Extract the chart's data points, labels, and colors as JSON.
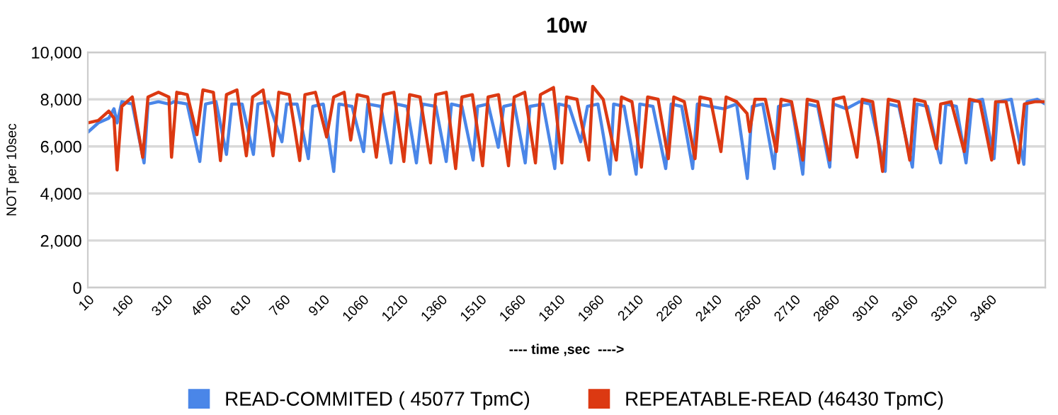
{
  "chart_data": {
    "type": "line",
    "title": "10w",
    "xlabel": "---- time ,sec  ---->",
    "ylabel": "NOT per 10sec",
    "xlim": [
      10,
      3670
    ],
    "xticks": [
      10,
      160,
      310,
      460,
      610,
      760,
      910,
      1060,
      1210,
      1360,
      1510,
      1660,
      1810,
      1960,
      2110,
      2260,
      2410,
      2560,
      2710,
      2860,
      3010,
      3160,
      3310,
      3460
    ],
    "ylim": [
      0,
      10000
    ],
    "yticks": [
      {
        "value": 0,
        "label": "0"
      },
      {
        "value": 2000,
        "label": "2,000"
      },
      {
        "value": 4000,
        "label": "4,000"
      },
      {
        "value": 6000,
        "label": "6,000"
      },
      {
        "value": 8000,
        "label": "8,000"
      },
      {
        "value": 10000,
        "label": "10,000"
      }
    ],
    "grid": "y",
    "legend": "bottom",
    "marker": "none",
    "line_style": "solid",
    "series": [
      {
        "name": "READ-COMMITED ( 45077 TpmC)",
        "color": "#4a86e8",
        "x": [
          10,
          50,
          90,
          110,
          122,
          140,
          180,
          225,
          240,
          280,
          320,
          340,
          390,
          438,
          460,
          500,
          540,
          560,
          600,
          643,
          660,
          700,
          752,
          770,
          810,
          853,
          870,
          910,
          950,
          970,
          1020,
          1064,
          1080,
          1130,
          1169,
          1190,
          1230,
          1266,
          1290,
          1340,
          1380,
          1400,
          1440,
          1483,
          1500,
          1540,
          1579,
          1600,
          1640,
          1682,
          1700,
          1750,
          1795,
          1810,
          1850,
          1894,
          1920,
          1960,
          2006,
          2020,
          2060,
          2106,
          2120,
          2170,
          2219,
          2240,
          2280,
          2322,
          2340,
          2390,
          2440,
          2490,
          2531,
          2550,
          2590,
          2634,
          2650,
          2700,
          2743,
          2760,
          2800,
          2846,
          2860,
          2910,
          2960,
          3000,
          3058,
          3070,
          3110,
          3162,
          3180,
          3220,
          3270,
          3290,
          3330,
          3367,
          3390,
          3430,
          3474,
          3490,
          3540,
          3588,
          3600,
          3640,
          3670
        ],
        "values": [
          6600,
          7000,
          7200,
          7600,
          7000,
          7900,
          7800,
          5300,
          7800,
          7900,
          7800,
          7900,
          7800,
          5360,
          7800,
          7900,
          5660,
          7800,
          7800,
          5660,
          7800,
          7900,
          6200,
          7800,
          7800,
          5480,
          7700,
          7800,
          4940,
          7800,
          7700,
          5780,
          7800,
          7700,
          5300,
          7800,
          7700,
          5300,
          7800,
          7700,
          5360,
          7800,
          7700,
          5420,
          7700,
          7800,
          5960,
          7700,
          7800,
          5300,
          7700,
          7800,
          5060,
          7800,
          7700,
          6200,
          7700,
          7800,
          4820,
          7800,
          7700,
          4820,
          7800,
          7700,
          5060,
          7800,
          7700,
          5060,
          7800,
          7700,
          7600,
          7800,
          4640,
          7700,
          7800,
          5060,
          7700,
          7800,
          4820,
          7800,
          7700,
          5120,
          7800,
          7600,
          7900,
          7800,
          4940,
          7800,
          7700,
          5120,
          7800,
          7700,
          5300,
          7800,
          7700,
          5300,
          7900,
          8000,
          5480,
          7900,
          8000,
          5240,
          7900,
          8000,
          7800
        ]
      },
      {
        "name": "REPEATABLE-READ (46430 TpmC)",
        "color": "#dc3912",
        "x": [
          10,
          50,
          90,
          110,
          122,
          140,
          180,
          220,
          240,
          280,
          320,
          330,
          350,
          390,
          427,
          450,
          490,
          517,
          540,
          580,
          616,
          640,
          680,
          718,
          740,
          780,
          820,
          840,
          880,
          923,
          950,
          990,
          1015,
          1040,
          1080,
          1113,
          1140,
          1180,
          1218,
          1240,
          1280,
          1320,
          1340,
          1380,
          1416,
          1440,
          1480,
          1519,
          1540,
          1580,
          1618,
          1640,
          1680,
          1721,
          1740,
          1790,
          1822,
          1840,
          1880,
          1925,
          1940,
          1980,
          2030,
          2050,
          2090,
          2126,
          2150,
          2190,
          2229,
          2250,
          2290,
          2331,
          2350,
          2390,
          2430,
          2450,
          2490,
          2530,
          2540,
          2560,
          2600,
          2642,
          2660,
          2700,
          2743,
          2760,
          2800,
          2846,
          2860,
          2900,
          2950,
          2970,
          3010,
          3048,
          3070,
          3110,
          3152,
          3170,
          3210,
          3254,
          3270,
          3310,
          3360,
          3380,
          3420,
          3465,
          3480,
          3520,
          3568,
          3590,
          3630,
          3670
        ],
        "values": [
          7000,
          7100,
          7500,
          7200,
          5000,
          7700,
          8100,
          5540,
          8100,
          8300,
          8100,
          5540,
          8300,
          8200,
          6500,
          8400,
          8300,
          5400,
          8200,
          8400,
          5600,
          8100,
          8400,
          5600,
          8300,
          8200,
          5400,
          8200,
          8300,
          6400,
          8100,
          8300,
          6270,
          8200,
          8100,
          5540,
          8200,
          8300,
          5360,
          8200,
          8100,
          5300,
          8200,
          8300,
          5060,
          8100,
          8200,
          5180,
          8100,
          8200,
          5180,
          8100,
          8300,
          5300,
          8200,
          8500,
          5300,
          8100,
          8000,
          5420,
          8550,
          8000,
          5420,
          8100,
          7900,
          5120,
          8100,
          8000,
          5480,
          8100,
          7900,
          5480,
          8100,
          8000,
          5780,
          8100,
          7900,
          7400,
          6630,
          8000,
          8000,
          5780,
          8000,
          7900,
          5420,
          8000,
          7900,
          5420,
          8000,
          8100,
          5540,
          8000,
          7900,
          4940,
          8000,
          7900,
          5420,
          8000,
          7900,
          5900,
          7800,
          7900,
          5780,
          8000,
          7900,
          5420,
          7900,
          7900,
          5300,
          7800,
          7900,
          7900
        ]
      }
    ]
  }
}
